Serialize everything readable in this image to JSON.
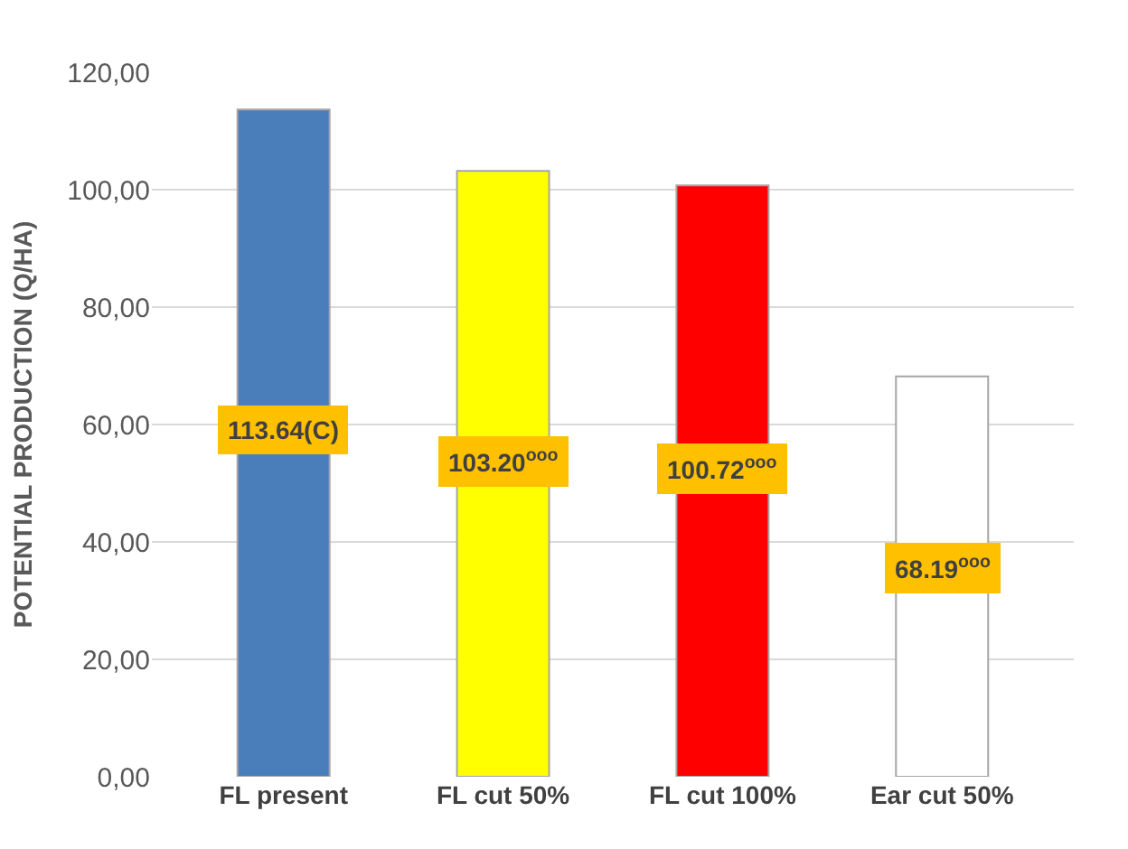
{
  "chart_data": {
    "type": "bar",
    "ylabel": "POTENTIAL PRODUCTION (Q/HA)",
    "categories": [
      "FL present",
      "FL cut 50%",
      "FL cut 100%",
      "Ear cut 50%"
    ],
    "values": [
      113.64,
      103.2,
      100.72,
      68.19
    ],
    "colors": [
      "#4a7ebb",
      "#ffff00",
      "#ff0000",
      "#ffffff"
    ],
    "value_labels": [
      "113.64(C)",
      "103.20$^{ooo}$",
      "100.72$^{ooo}$",
      "68.19$^{ooo}$"
    ],
    "ylim": [
      0,
      120
    ],
    "yticks": [
      {
        "value": 0,
        "label": "0,00"
      },
      {
        "value": 20,
        "label": "20,00"
      },
      {
        "value": 40,
        "label": "40,00"
      },
      {
        "value": 60,
        "label": "60,00"
      },
      {
        "value": 80,
        "label": "80,00"
      },
      {
        "value": 100,
        "label": "100,00"
      },
      {
        "value": 120,
        "label": "120,00"
      }
    ],
    "grid": "y"
  }
}
